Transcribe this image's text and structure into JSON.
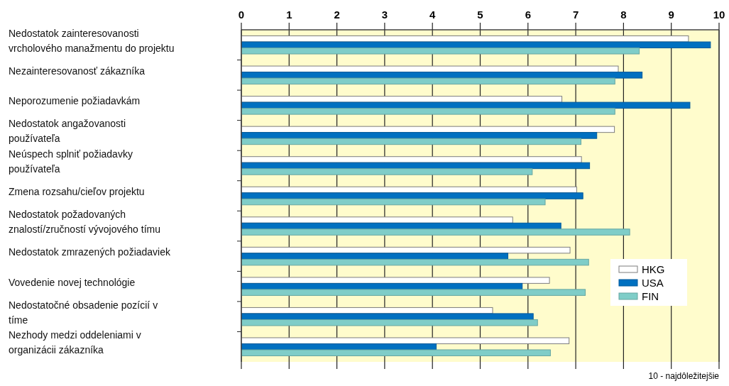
{
  "chart_data": {
    "type": "bar",
    "orientation": "horizontal",
    "categories": [
      "Nedostatok zainteresovanosti vrcholového manažmentu do projektu",
      "Nezainteresovanosť zákazníka",
      "Neporozumenie požiadavkám",
      "Nedostatok angažovanosti používateľa",
      "Neúspech splniť požiadavky používateľa",
      "Zmena rozsahu/cieľov projektu",
      "Nedostatok požadovaných znalostí/zručností vývojového tímu",
      "Nedostatok zmrazených požiadaviek",
      "Vovedenie novej technológie",
      "Nedostatočné obsadenie pozícií v tíme",
      "Nezhody medzi oddeleniami v organizácii zákazníka"
    ],
    "series": [
      {
        "name": "HKG",
        "color": "#ffffff",
        "values": [
          9.36,
          7.89,
          6.71,
          7.81,
          7.12,
          7.02,
          5.68,
          6.88,
          6.45,
          5.26,
          6.86
        ]
      },
      {
        "name": "USA",
        "color": "#0070c0",
        "values": [
          9.82,
          8.39,
          9.39,
          7.44,
          7.29,
          7.15,
          6.69,
          5.58,
          5.88,
          6.11,
          4.08
        ]
      },
      {
        "name": "FIN",
        "color": "#7fcdc8",
        "values": [
          8.33,
          7.82,
          7.82,
          7.11,
          6.09,
          6.36,
          8.13,
          7.27,
          7.2,
          6.2,
          6.47
        ]
      }
    ],
    "xlim": [
      0,
      10
    ],
    "xticks": [
      0,
      1,
      2,
      3,
      4,
      5,
      6,
      7,
      8,
      9,
      10
    ],
    "grid": "x",
    "legend": "bottom right",
    "annotations": [
      "10 - najdôležitejšie"
    ]
  }
}
